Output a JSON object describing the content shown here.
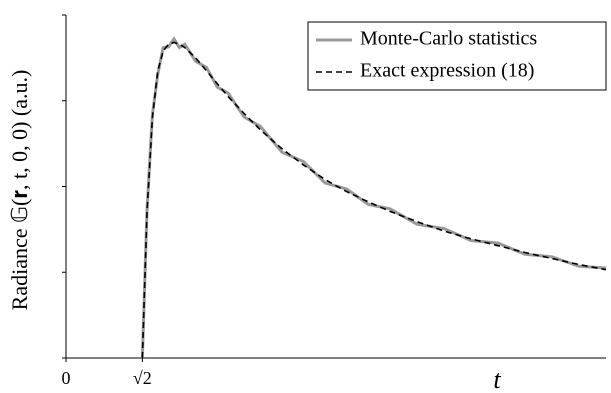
{
  "chart_data": {
    "type": "line",
    "ylabel": "Radiance 𝔾(𝐫, t, 0, 0)  (a.u.)",
    "xlabel": "t",
    "x": [
      1.414,
      1.5,
      1.6,
      1.7,
      1.8,
      1.9,
      2.0,
      2.1,
      2.2,
      2.4,
      2.6,
      2.8,
      3.0,
      3.3,
      3.6,
      4.0,
      4.4,
      4.8,
      5.2,
      5.6,
      6.0,
      6.5,
      7.0,
      7.5,
      8.0,
      8.5,
      9.0,
      9.5,
      10.0
    ],
    "series": [
      {
        "name": "Monte-Carlo statistics",
        "color": "#999999",
        "dash": "none",
        "values": [
          0,
          1.72,
          2.84,
          3.31,
          3.62,
          3.63,
          3.72,
          3.62,
          3.66,
          3.46,
          3.39,
          3.16,
          3.09,
          2.81,
          2.7,
          2.4,
          2.29,
          2.04,
          1.97,
          1.79,
          1.74,
          1.56,
          1.51,
          1.37,
          1.34,
          1.21,
          1.18,
          1.07,
          1.05
        ]
      },
      {
        "name": "Exact expression (18)",
        "color": "#000000",
        "dash": "6,4",
        "values": [
          0,
          1.7,
          2.8,
          3.35,
          3.58,
          3.66,
          3.68,
          3.66,
          3.62,
          3.5,
          3.35,
          3.2,
          3.05,
          2.85,
          2.66,
          2.44,
          2.25,
          2.08,
          1.94,
          1.82,
          1.71,
          1.59,
          1.48,
          1.39,
          1.31,
          1.23,
          1.16,
          1.09,
          1.03
        ]
      }
    ],
    "xlim": [
      0,
      10
    ],
    "xticks": [
      0,
      {
        "value": 1.414,
        "label": "√2"
      }
    ],
    "ylim": [
      0,
      4
    ],
    "yticks": [
      0,
      1,
      2,
      3,
      4
    ],
    "legend": "upper right"
  }
}
